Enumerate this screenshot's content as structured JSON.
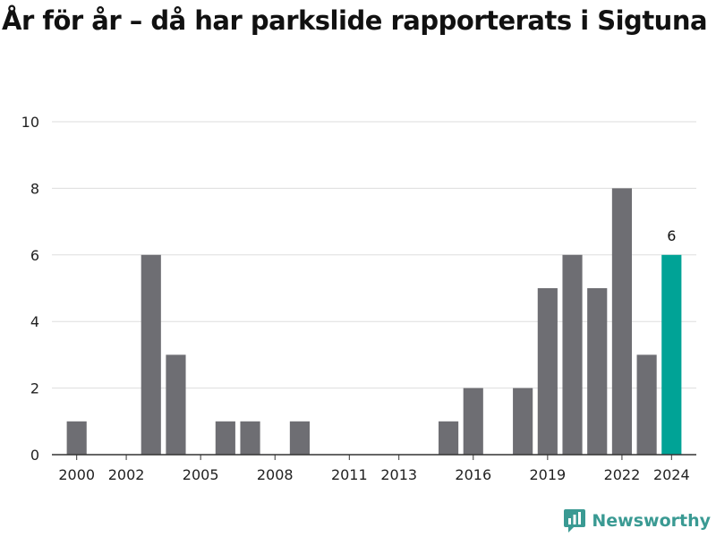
{
  "chart_data": {
    "type": "bar",
    "title": "År för år – då har parkslide rapporterats i Sigtuna",
    "xlabel": "",
    "ylabel": "",
    "x": [
      2000,
      2001,
      2002,
      2003,
      2004,
      2005,
      2006,
      2007,
      2008,
      2009,
      2010,
      2011,
      2012,
      2013,
      2014,
      2015,
      2016,
      2017,
      2018,
      2019,
      2020,
      2021,
      2022,
      2023,
      2024
    ],
    "values": [
      1,
      0,
      0,
      6,
      3,
      0,
      1,
      1,
      0,
      1,
      0,
      0,
      0,
      0,
      0,
      1,
      2,
      0,
      2,
      5,
      6,
      5,
      8,
      3,
      6
    ],
    "x_tick_labels": [
      "2000",
      "2002",
      "2005",
      "2008",
      "2011",
      "2013",
      "2016",
      "2019",
      "2022",
      "2024"
    ],
    "y_tick_labels": [
      "0",
      "2",
      "4",
      "6",
      "8",
      "10"
    ],
    "ylim": [
      0,
      10
    ],
    "highlight_year": 2024,
    "highlight_label": "6",
    "grid": true,
    "legend": "none",
    "colors": {
      "bar": "#6e6e73",
      "highlight": "#00a396",
      "grid": "#dddddd",
      "axis": "#333333"
    }
  },
  "brand": {
    "name": "Newsworthy",
    "icon": "newsworthy-logo-icon",
    "color": "#3a9a93"
  }
}
